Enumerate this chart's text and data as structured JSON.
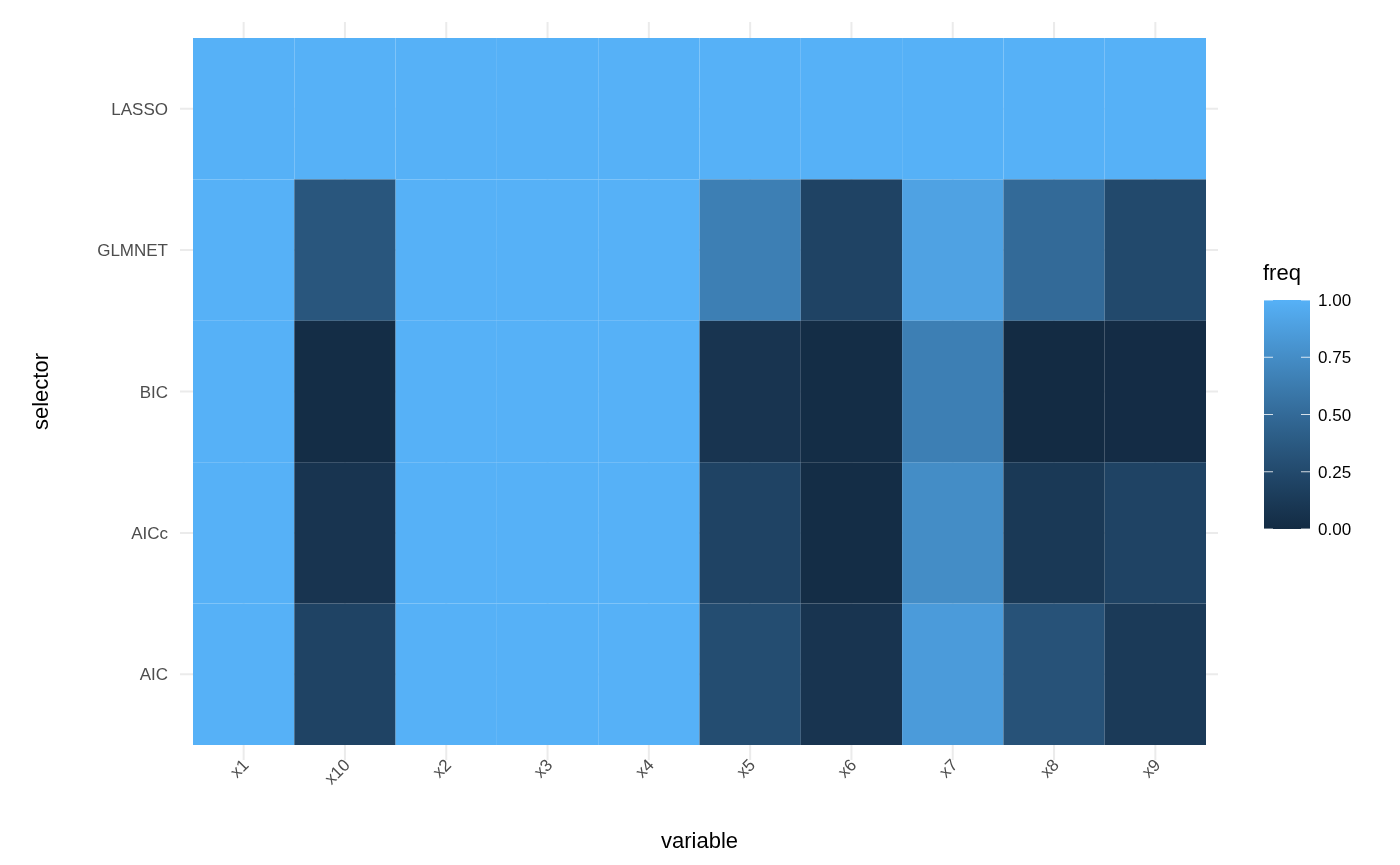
{
  "chart_data": {
    "type": "heatmap",
    "xlabel": "variable",
    "ylabel": "selector",
    "clabel": "freq",
    "categories": [
      "x1",
      "x10",
      "x2",
      "x3",
      "x4",
      "x5",
      "x6",
      "x7",
      "x8",
      "x9"
    ],
    "y_categories": [
      "LASSO",
      "GLMNET",
      "BIC",
      "AICc",
      "AIC"
    ],
    "cells": [
      [
        1,
        1,
        1,
        1,
        1,
        1,
        1,
        1,
        1,
        1
      ],
      [
        1,
        0.35,
        1,
        1,
        1,
        0.65,
        0.2,
        0.9,
        0.5,
        0.25
      ],
      [
        1,
        0.02,
        1,
        1,
        1,
        0.08,
        0.02,
        0.65,
        0,
        0.01
      ],
      [
        1,
        0.08,
        1,
        1,
        1,
        0.2,
        0.02,
        0.75,
        0.12,
        0.2
      ],
      [
        1,
        0.2,
        1,
        1,
        1,
        0.28,
        0.08,
        0.85,
        0.32,
        0.13
      ]
    ],
    "clim": [
      0,
      1
    ],
    "cticks": [
      {
        "value": 0,
        "label": "0.00"
      },
      {
        "value": 0.25,
        "label": "0.25"
      },
      {
        "value": 0.5,
        "label": "0.50"
      },
      {
        "value": 0.75,
        "label": "0.75"
      },
      {
        "value": 1,
        "label": "1.00"
      }
    ],
    "grid": true
  }
}
